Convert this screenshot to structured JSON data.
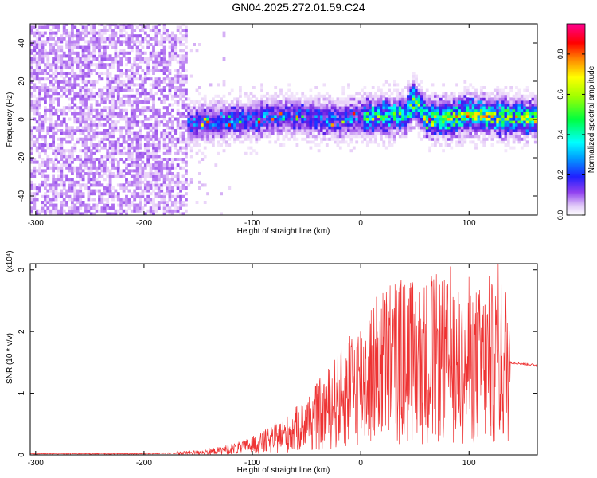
{
  "title": "GN04.2025.272.01.59.C24",
  "colors": {
    "snr_line": "#ee3333",
    "axis": "#000000",
    "colormap": [
      "#ffffff",
      "#e8d0f8",
      "#b070f0",
      "#7020e0",
      "#2020ff",
      "#00a0ff",
      "#00ffff",
      "#00ff60",
      "#80ff00",
      "#ffff00",
      "#ff8000",
      "#ff0000",
      "#ff00a0"
    ]
  },
  "chart_data": [
    {
      "type": "heatmap",
      "xlabel": "Height of straight line (km)",
      "ylabel": "Frequency (Hz)",
      "xlim": [
        -305,
        163
      ],
      "ylim": [
        -50,
        50
      ],
      "xticks": [
        -300,
        -200,
        -100,
        0,
        100
      ],
      "yticks": [
        -40,
        -20,
        0,
        20,
        40
      ],
      "colorbar": {
        "label": "Normalized spectral amplitude",
        "range": [
          0,
          0.95
        ],
        "ticks": [
          0.0,
          0.2,
          0.4,
          0.6,
          0.8
        ]
      },
      "ridge": {
        "x": [
          -160,
          -140,
          -120,
          -100,
          -80,
          -60,
          -40,
          -20,
          0,
          20,
          40,
          48,
          60,
          80,
          100,
          120,
          140,
          163
        ],
        "frequency": [
          -3,
          -2,
          -1,
          -1,
          1,
          1,
          0,
          -1,
          1,
          1,
          2,
          9,
          0,
          0,
          2,
          1,
          0,
          0
        ]
      },
      "noise_region_x": [
        -305,
        -160
      ]
    },
    {
      "type": "line",
      "xlabel": "Height of straight line (km)",
      "ylabel": "SNR (10 * v/v)",
      "scale_label": "(x10⁴)",
      "xlim": [
        -305,
        163
      ],
      "ylim": [
        0,
        3.1
      ],
      "xticks": [
        -300,
        -200,
        -100,
        0,
        100
      ],
      "yticks": [
        0,
        1,
        2,
        3
      ],
      "envelope": {
        "x": [
          -305,
          -200,
          -170,
          -150,
          -130,
          -110,
          -90,
          -70,
          -50,
          -30,
          -10,
          10,
          30,
          50,
          70,
          90,
          110,
          130,
          138,
          163
        ],
        "y": [
          0.02,
          0.02,
          0.03,
          0.04,
          0.07,
          0.12,
          0.2,
          0.32,
          0.5,
          0.75,
          1.05,
          1.35,
          1.55,
          1.5,
          1.55,
          1.45,
          1.45,
          1.5,
          1.5,
          1.45
        ]
      },
      "peak": {
        "x": 83,
        "y": 3.05
      }
    }
  ]
}
